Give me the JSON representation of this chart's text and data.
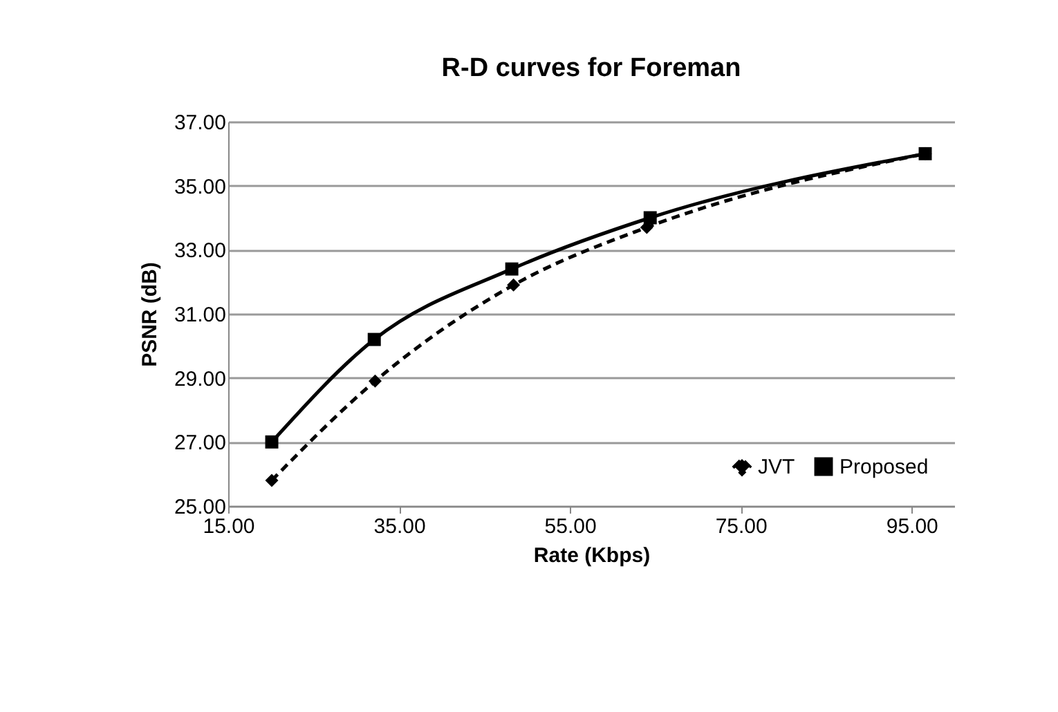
{
  "chart_data": {
    "type": "line",
    "title": "R-D curves for Foreman",
    "xlabel": "Rate (Kbps)",
    "ylabel": "PSNR (dB)",
    "xlim": [
      15,
      100
    ],
    "xticks": [
      {
        "value": 15,
        "label": "15.00"
      },
      {
        "value": 35,
        "label": "35.00"
      },
      {
        "value": 55,
        "label": "55.00"
      },
      {
        "value": 75,
        "label": "75.00"
      },
      {
        "value": 95,
        "label": "95.00"
      }
    ],
    "ylim": [
      25,
      37
    ],
    "yticks": [
      {
        "value": 25,
        "label": "25.00"
      },
      {
        "value": 27,
        "label": "27.00"
      },
      {
        "value": 29,
        "label": "29.00"
      },
      {
        "value": 31,
        "label": "31.00"
      },
      {
        "value": 33,
        "label": "33.00"
      },
      {
        "value": 35,
        "label": "35.00"
      },
      {
        "value": 37,
        "label": "37.00"
      }
    ],
    "grid": "y",
    "legend": "bottom right",
    "series": [
      {
        "name": "JVT",
        "color": "#000000",
        "marker": "diamond",
        "line_style": "dashed",
        "x": [
          20.1,
          32.2,
          48.4,
          64.0,
          96.6
        ],
        "values": [
          25.8,
          28.9,
          31.9,
          33.7,
          36.0
        ]
      },
      {
        "name": "Proposed",
        "color": "#000000",
        "marker": "square",
        "line_style": "solid",
        "x": [
          20.1,
          32.1,
          48.2,
          64.4,
          96.6
        ],
        "values": [
          27.0,
          30.2,
          32.4,
          34.0,
          36.0
        ]
      }
    ]
  }
}
